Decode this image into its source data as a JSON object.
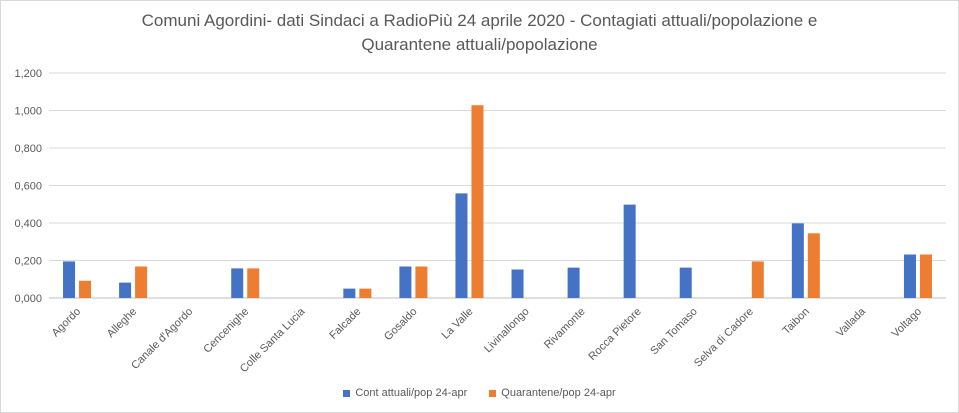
{
  "chart_data": {
    "type": "bar",
    "title_line1": "Comuni Agordini- dati Sindaci a RadioPiù 24 aprile 2020 - Contagiati attuali/popolazione e",
    "title_line2": "Quarantene attuali/popolazione",
    "categories": [
      "Agordo",
      "Alleghe",
      "Canale d'Agordo",
      "Cencenighe",
      "Colle Santa Lucia",
      "Falcade",
      "Gosaldo",
      "La Valle",
      "Livinallongo",
      "Rivamonte",
      "Rocca Pietore",
      "San Tomaso",
      "Selva di Cadore",
      "Taibon",
      "Vallada",
      "Voltago"
    ],
    "series": [
      {
        "name": "Cont attuali/pop 24-apr",
        "color": "#4472c4",
        "values": [
          0.195,
          0.082,
          0,
          0.158,
          0,
          0.05,
          0.168,
          0.558,
          0.152,
          0.162,
          0.498,
          0.162,
          0,
          0.398,
          0,
          0.232
        ]
      },
      {
        "name": "Quarantene/pop 24-apr",
        "color": "#ed7d31",
        "values": [
          0.092,
          0.168,
          0,
          0.158,
          0,
          0.05,
          0.168,
          1.028,
          0,
          0,
          0,
          0,
          0.195,
          0.345,
          0,
          0.232
        ]
      }
    ],
    "y_ticks": [
      "0,000",
      "0,200",
      "0,400",
      "0,600",
      "0,800",
      "1,000",
      "1,200"
    ],
    "ylim": [
      0,
      1.2
    ],
    "grid": true,
    "legend_position": "bottom"
  }
}
